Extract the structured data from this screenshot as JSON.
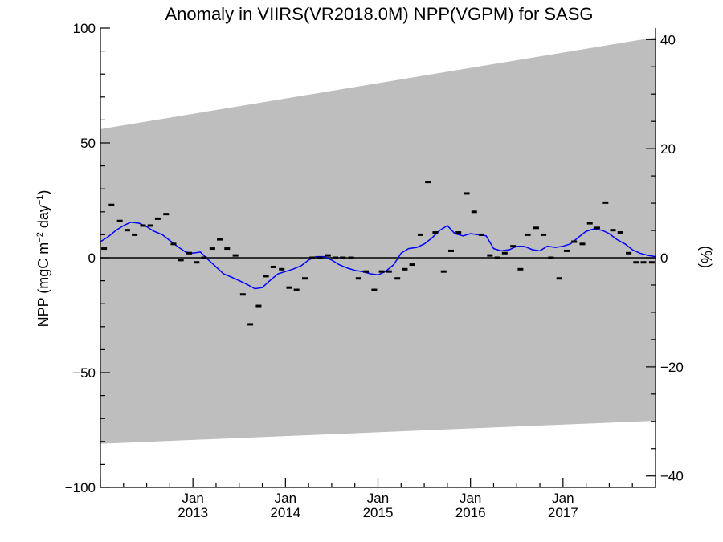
{
  "chart_data": {
    "type": "line",
    "title": "Anomaly in VIIRS(VR2018.0M) NPP(VGPM) for SASG",
    "ylabel_main": "NPP (mgC m",
    "ylabel_sup1": "−2",
    "ylabel_mid": " day",
    "ylabel_sup2": "−1",
    "ylabel_end": ")",
    "ylabel_right": "(%)",
    "xlim": [
      2012.0,
      2018.0
    ],
    "ylim": [
      -100,
      100
    ],
    "ylim_right": [
      -42.1,
      42.1
    ],
    "y_ticks": [
      -100,
      -50,
      0,
      50,
      100
    ],
    "y_tick_labels": [
      "−100",
      "−50",
      "0",
      "50",
      "100"
    ],
    "y_right_ticks": [
      -40,
      -20,
      0,
      20,
      40
    ],
    "y_right_tick_labels": [
      "−40",
      "−20",
      "0",
      "20",
      "40"
    ],
    "x_major_ticks": [
      2013.0,
      2014.0,
      2015.0,
      2016.0,
      2017.0
    ],
    "x_tick_labels": [
      {
        "month": "Jan",
        "year": "2013"
      },
      {
        "month": "Jan",
        "year": "2014"
      },
      {
        "month": "Jan",
        "year": "2015"
      },
      {
        "month": "Jan",
        "year": "2016"
      },
      {
        "month": "Jan",
        "year": "2017"
      }
    ],
    "grid": false,
    "colors": {
      "band": "#bebebe",
      "smooth_line": "#0000ff",
      "points": "#000000",
      "zero_line": "#000000"
    },
    "uncertainty_band": {
      "x": [
        2012.0,
        2018.0
      ],
      "upper": [
        56,
        96
      ],
      "lower": [
        -81,
        -71
      ]
    },
    "monthly_anomaly": {
      "x": [
        2012.04,
        2012.12,
        2012.21,
        2012.29,
        2012.37,
        2012.46,
        2012.54,
        2012.62,
        2012.71,
        2012.79,
        2012.87,
        2012.96,
        2013.04,
        2013.12,
        2013.21,
        2013.29,
        2013.37,
        2013.46,
        2013.54,
        2013.62,
        2013.71,
        2013.79,
        2013.87,
        2013.96,
        2014.04,
        2014.12,
        2014.21,
        2014.29,
        2014.37,
        2014.46,
        2014.54,
        2014.62,
        2014.71,
        2014.79,
        2014.87,
        2014.96,
        2015.04,
        2015.12,
        2015.21,
        2015.29,
        2015.37,
        2015.46,
        2015.54,
        2015.62,
        2015.71,
        2015.79,
        2015.87,
        2015.96,
        2016.04,
        2016.12,
        2016.21,
        2016.29,
        2016.37,
        2016.46,
        2016.54,
        2016.62,
        2016.71,
        2016.79,
        2016.87,
        2016.96,
        2017.04,
        2017.12,
        2017.21,
        2017.29,
        2017.37,
        2017.46,
        2017.54,
        2017.62,
        2017.71,
        2017.79,
        2017.87,
        2017.96
      ],
      "y": [
        4,
        23,
        16,
        12,
        10,
        14,
        14,
        17,
        19,
        6,
        -1,
        2,
        -2,
        0,
        4,
        8,
        4,
        1,
        -16,
        -29,
        -21,
        -8,
        -4,
        -5,
        -13,
        -14,
        -9,
        0,
        0,
        1,
        0,
        0,
        0,
        -9,
        -6,
        -14,
        -6,
        -6,
        -9,
        -5,
        -3,
        10,
        33,
        11,
        -6,
        3,
        11,
        28,
        20,
        10,
        1,
        0,
        2,
        5,
        -5,
        10,
        13,
        10,
        0,
        -9,
        3,
        7,
        6,
        15,
        13,
        24,
        12,
        11,
        2,
        -2,
        -2,
        -2
      ]
    },
    "smoothed_anomaly": {
      "x": [
        2012.0,
        2012.08,
        2012.17,
        2012.25,
        2012.33,
        2012.42,
        2012.5,
        2012.58,
        2012.67,
        2012.75,
        2012.83,
        2012.92,
        2013.0,
        2013.08,
        2013.17,
        2013.25,
        2013.33,
        2013.42,
        2013.5,
        2013.58,
        2013.67,
        2013.75,
        2013.83,
        2013.92,
        2014.0,
        2014.08,
        2014.17,
        2014.25,
        2014.33,
        2014.42,
        2014.5,
        2014.58,
        2014.67,
        2014.75,
        2014.83,
        2014.92,
        2015.0,
        2015.08,
        2015.17,
        2015.25,
        2015.33,
        2015.42,
        2015.5,
        2015.58,
        2015.67,
        2015.75,
        2015.83,
        2015.92,
        2016.0,
        2016.08,
        2016.17,
        2016.25,
        2016.33,
        2016.42,
        2016.5,
        2016.58,
        2016.67,
        2016.75,
        2016.83,
        2016.92,
        2017.0,
        2017.08,
        2017.17,
        2017.25,
        2017.33,
        2017.42,
        2017.5,
        2017.58,
        2017.67,
        2017.75,
        2017.83,
        2017.92,
        2018.0
      ],
      "y": [
        7,
        9,
        12,
        14,
        15.5,
        15,
        13.5,
        11.5,
        10,
        7.5,
        5,
        2.5,
        2,
        2.5,
        -1,
        -4,
        -7,
        -8.5,
        -10,
        -11.5,
        -13.5,
        -13,
        -10,
        -7,
        -6,
        -5,
        -3.5,
        -1,
        0.5,
        0.5,
        -1,
        -3,
        -4.5,
        -5.5,
        -6,
        -7,
        -7.5,
        -6,
        -3,
        2,
        4,
        4.5,
        6,
        8.5,
        12,
        14,
        10.5,
        9.5,
        10.5,
        10,
        9.5,
        4,
        3,
        3.5,
        5,
        5,
        3.5,
        3,
        5,
        4.5,
        5,
        6,
        9,
        11.5,
        12.5,
        12,
        10.5,
        8,
        6,
        3.5,
        2,
        1,
        0.5
      ]
    }
  }
}
